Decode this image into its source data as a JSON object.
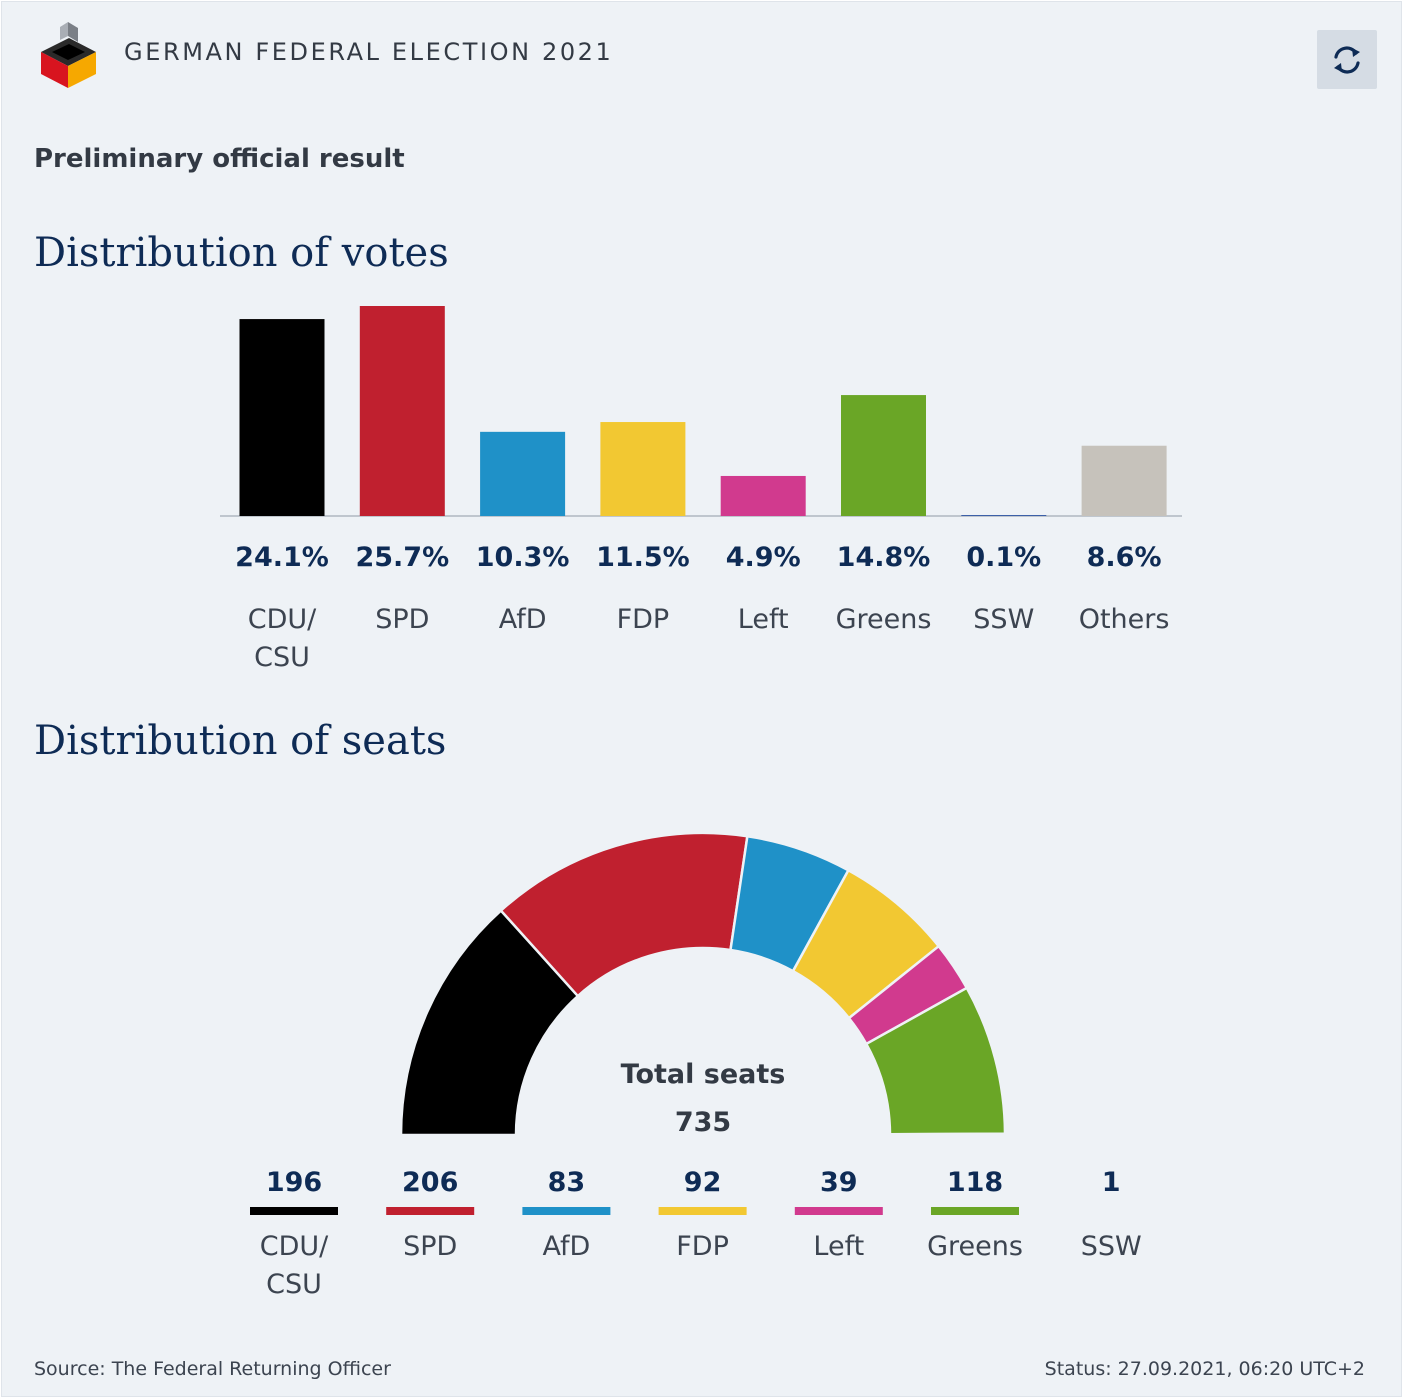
{
  "header": {
    "title": "GERMAN FEDERAL ELECTION 2021",
    "logo_icon": "ballot-box-icon",
    "refresh_icon": "refresh-icon"
  },
  "subtitle": "Preliminary official result",
  "votes_section_title": "Distribution of votes",
  "seats_section_title": "Distribution of seats",
  "chart_data": [
    {
      "type": "bar",
      "title": "Distribution of votes",
      "categories": [
        [
          "CDU/",
          "CSU"
        ],
        [
          "SPD"
        ],
        [
          "AfD"
        ],
        [
          "FDP"
        ],
        [
          "Left"
        ],
        [
          "Greens"
        ],
        [
          "SSW"
        ],
        [
          "Others"
        ]
      ],
      "values": [
        24.1,
        25.7,
        10.3,
        11.5,
        4.9,
        14.8,
        0.1,
        8.6
      ],
      "value_labels": [
        "24.1%",
        "25.7%",
        "10.3%",
        "11.5%",
        "4.9%",
        "14.8%",
        "0.1%",
        "8.6%"
      ],
      "colors": [
        "#000000",
        "#c0202f",
        "#1f91c8",
        "#f2c832",
        "#d13a8e",
        "#6aa626",
        "#1f4aa0",
        "#c6c2bb"
      ],
      "ylim": [
        0,
        25.7
      ]
    },
    {
      "type": "pie",
      "subtype": "half-donut",
      "title": "Distribution of seats",
      "center_label": "Total seats",
      "total": 735,
      "categories": [
        [
          "CDU/",
          "CSU"
        ],
        [
          "SPD"
        ],
        [
          "AfD"
        ],
        [
          "FDP"
        ],
        [
          "Left"
        ],
        [
          "Greens"
        ],
        [
          "SSW"
        ]
      ],
      "values": [
        196,
        206,
        83,
        92,
        39,
        118,
        1
      ],
      "colors": [
        "#000000",
        "#c0202f",
        "#1f91c8",
        "#f2c832",
        "#d13a8e",
        "#6aa626",
        "#1f4aa0"
      ]
    }
  ],
  "footer": {
    "source": "Source: The Federal Returning Officer",
    "status": "Status: 27.09.2021, 06:20 UTC+2"
  }
}
